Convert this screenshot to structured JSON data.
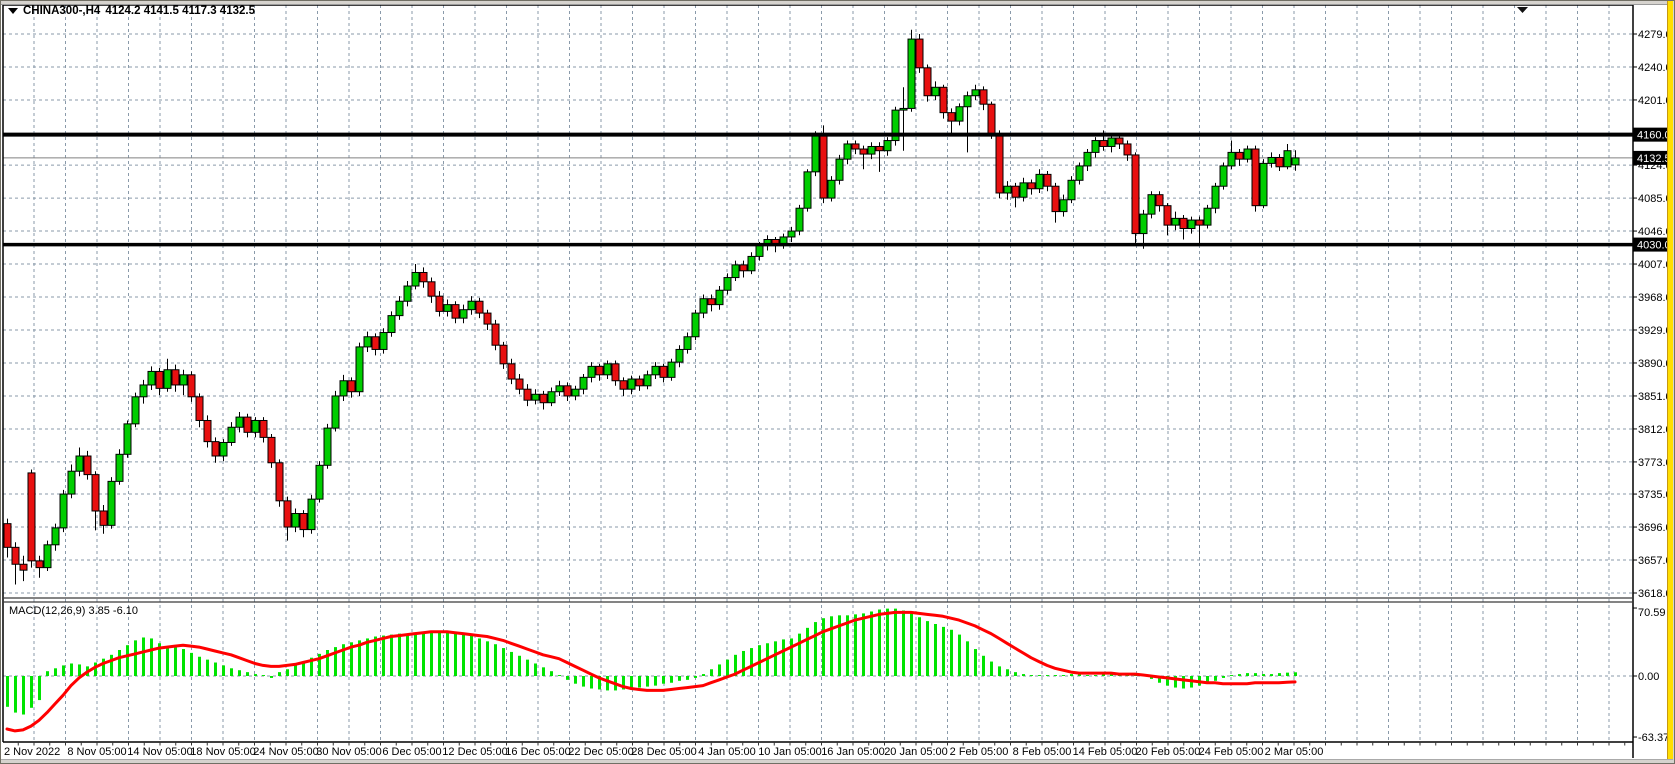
{
  "titlebar": {
    "symbol_tf": "CHINA300-,H4",
    "ohlc_text": "4124.2 4141.5 4117.3 4132.5"
  },
  "colors": {
    "bull": "#00cd00",
    "bear": "#e81010",
    "candle_outline": "#000000",
    "macd_hist": "#00e400",
    "macd_signal": "#ff0000",
    "grid": "#8a9aaa",
    "hline": "#000000",
    "current_price_line": "#808080",
    "axis_text": "#000000",
    "label_box_bg": "#000000",
    "label_box_text": "#ffffff",
    "chrome": "#d6d3ce",
    "accent_stripe": "#ffde00"
  },
  "chart_data": {
    "type": "candlestick",
    "title": "CHINA300-,H4",
    "symbol": "CHINA300-",
    "timeframe": "H4",
    "last_bar": {
      "open": 4124.2,
      "high": 4141.5,
      "low": 4117.3,
      "close": 4132.5
    },
    "price_axis": {
      "labels": [
        4279.0,
        4240.0,
        4201.0,
        4124.0,
        4085.0,
        4046.0,
        4007.0,
        3968.0,
        3929.0,
        3890.0,
        3851.0,
        3812.0,
        3773.0,
        3735.0,
        3696.0,
        3657.0,
        3618.0
      ]
    },
    "horizontal_lines": [
      {
        "price": 4160.0,
        "label": "4160.0",
        "thickness": 4
      },
      {
        "price": 4030.0,
        "label": "4030.0",
        "thickness": 3.5
      }
    ],
    "current_price": {
      "value": 4132.5,
      "label": "4132.5"
    },
    "time_axis": {
      "labels": [
        "2 Nov 2022",
        "8 Nov 05:00",
        "14 Nov 05:00",
        "18 Nov 05:00",
        "24 Nov 05:00",
        "30 Nov 05:00",
        "6 Dec 05:00",
        "12 Dec 05:00",
        "16 Dec 05:00",
        "22 Dec 05:00",
        "28 Dec 05:00",
        "4 Jan 05:00",
        "10 Jan 05:00",
        "16 Jan 05:00",
        "20 Jan 05:00",
        "2 Feb 05:00",
        "8 Feb 05:00",
        "14 Feb 05:00",
        "20 Feb 05:00",
        "24 Feb 05:00",
        "2 Mar 05:00"
      ]
    },
    "candles": [
      [
        3700,
        3706,
        3660,
        3672
      ],
      [
        3672,
        3678,
        3628,
        3652
      ],
      [
        3652,
        3662,
        3632,
        3645
      ],
      [
        3760,
        3764,
        3648,
        3656
      ],
      [
        3656,
        3662,
        3636,
        3648
      ],
      [
        3648,
        3680,
        3644,
        3675
      ],
      [
        3675,
        3700,
        3668,
        3695
      ],
      [
        3695,
        3740,
        3690,
        3735
      ],
      [
        3735,
        3770,
        3730,
        3762
      ],
      [
        3762,
        3790,
        3756,
        3780
      ],
      [
        3780,
        3786,
        3752,
        3758
      ],
      [
        3758,
        3762,
        3692,
        3715
      ],
      [
        3715,
        3722,
        3688,
        3698
      ],
      [
        3698,
        3755,
        3694,
        3750
      ],
      [
        3750,
        3788,
        3746,
        3782
      ],
      [
        3782,
        3822,
        3778,
        3818
      ],
      [
        3818,
        3855,
        3814,
        3850
      ],
      [
        3850,
        3870,
        3842,
        3864
      ],
      [
        3864,
        3886,
        3858,
        3880
      ],
      [
        3880,
        3884,
        3852,
        3860
      ],
      [
        3860,
        3895,
        3856,
        3882
      ],
      [
        3882,
        3888,
        3856,
        3864
      ],
      [
        3864,
        3882,
        3852,
        3876
      ],
      [
        3876,
        3880,
        3844,
        3850
      ],
      [
        3850,
        3854,
        3814,
        3822
      ],
      [
        3822,
        3828,
        3790,
        3797
      ],
      [
        3797,
        3802,
        3772,
        3780
      ],
      [
        3780,
        3800,
        3774,
        3796
      ],
      [
        3796,
        3820,
        3792,
        3814
      ],
      [
        3814,
        3832,
        3808,
        3826
      ],
      [
        3826,
        3830,
        3802,
        3808
      ],
      [
        3808,
        3826,
        3802,
        3822
      ],
      [
        3822,
        3826,
        3796,
        3802
      ],
      [
        3802,
        3806,
        3766,
        3772
      ],
      [
        3772,
        3776,
        3720,
        3727
      ],
      [
        3727,
        3732,
        3680,
        3696
      ],
      [
        3696,
        3718,
        3690,
        3712
      ],
      [
        3712,
        3716,
        3684,
        3693
      ],
      [
        3693,
        3734,
        3688,
        3729
      ],
      [
        3729,
        3774,
        3725,
        3769
      ],
      [
        3769,
        3818,
        3765,
        3813
      ],
      [
        3813,
        3857,
        3809,
        3851
      ],
      [
        3851,
        3876,
        3845,
        3869
      ],
      [
        3869,
        3873,
        3849,
        3856
      ],
      [
        3856,
        3914,
        3851,
        3909
      ],
      [
        3909,
        3927,
        3903,
        3921
      ],
      [
        3921,
        3925,
        3899,
        3906
      ],
      [
        3906,
        3931,
        3901,
        3926
      ],
      [
        3926,
        3951,
        3921,
        3946
      ],
      [
        3946,
        3969,
        3941,
        3963
      ],
      [
        3963,
        3987,
        3957,
        3981
      ],
      [
        3981,
        4007,
        3977,
        3997
      ],
      [
        3997,
        4003,
        3979,
        3986
      ],
      [
        3986,
        3991,
        3961,
        3969
      ],
      [
        3969,
        3975,
        3945,
        3951
      ],
      [
        3951,
        3965,
        3945,
        3959
      ],
      [
        3959,
        3963,
        3937,
        3943
      ],
      [
        3943,
        3959,
        3937,
        3953
      ],
      [
        3953,
        3969,
        3947,
        3963
      ],
      [
        3963,
        3967,
        3943,
        3949
      ],
      [
        3949,
        3953,
        3929,
        3936
      ],
      [
        3936,
        3941,
        3905,
        3911
      ],
      [
        3911,
        3915,
        3883,
        3889
      ],
      [
        3889,
        3895,
        3865,
        3871
      ],
      [
        3871,
        3877,
        3853,
        3859
      ],
      [
        3859,
        3865,
        3839,
        3846
      ],
      [
        3846,
        3859,
        3841,
        3853
      ],
      [
        3853,
        3857,
        3835,
        3843
      ],
      [
        3843,
        3861,
        3839,
        3856
      ],
      [
        3856,
        3869,
        3851,
        3863
      ],
      [
        3863,
        3867,
        3845,
        3851
      ],
      [
        3851,
        3863,
        3846,
        3859
      ],
      [
        3859,
        3877,
        3853,
        3873
      ],
      [
        3873,
        3891,
        3867,
        3886
      ],
      [
        3886,
        3889,
        3869,
        3876
      ],
      [
        3876,
        3893,
        3871,
        3889
      ],
      [
        3889,
        3893,
        3863,
        3869
      ],
      [
        3869,
        3873,
        3851,
        3859
      ],
      [
        3859,
        3875,
        3853,
        3871
      ],
      [
        3871,
        3875,
        3857,
        3863
      ],
      [
        3863,
        3881,
        3859,
        3876
      ],
      [
        3876,
        3891,
        3871,
        3886
      ],
      [
        3886,
        3889,
        3867,
        3873
      ],
      [
        3873,
        3895,
        3869,
        3891
      ],
      [
        3891,
        3911,
        3885,
        3906
      ],
      [
        3906,
        3926,
        3901,
        3921
      ],
      [
        3921,
        3953,
        3917,
        3949
      ],
      [
        3949,
        3971,
        3943,
        3966
      ],
      [
        3966,
        3971,
        3951,
        3959
      ],
      [
        3959,
        3981,
        3953,
        3976
      ],
      [
        3976,
        3996,
        3971,
        3991
      ],
      [
        3991,
        4011,
        3987,
        4006
      ],
      [
        4006,
        4011,
        3991,
        3999
      ],
      [
        3999,
        4021,
        3995,
        4016
      ],
      [
        4016,
        4033,
        4011,
        4029
      ],
      [
        4029,
        4041,
        4023,
        4036
      ],
      [
        4036,
        4039,
        4021,
        4029
      ],
      [
        4029,
        4043,
        4025,
        4039
      ],
      [
        4039,
        4051,
        4033,
        4046
      ],
      [
        4046,
        4077,
        4041,
        4073
      ],
      [
        4073,
        4119,
        4069,
        4116
      ],
      [
        4116,
        4164,
        4111,
        4159
      ],
      [
        4159,
        4171,
        4079,
        4085
      ],
      [
        4085,
        4111,
        4081,
        4106
      ],
      [
        4106,
        4136,
        4101,
        4131
      ],
      [
        4131,
        4153,
        4125,
        4149
      ],
      [
        4149,
        4153,
        4137,
        4143
      ],
      [
        4143,
        4147,
        4119,
        4137
      ],
      [
        4137,
        4151,
        4131,
        4146
      ],
      [
        4146,
        4151,
        4116,
        4141
      ],
      [
        4141,
        4157,
        4135,
        4153
      ],
      [
        4153,
        4193,
        4147,
        4189
      ],
      [
        4189,
        4216,
        4141,
        4191
      ],
      [
        4191,
        4284,
        4187,
        4273
      ],
      [
        4273,
        4279,
        4233,
        4239
      ],
      [
        4239,
        4243,
        4199,
        4206
      ],
      [
        4206,
        4223,
        4201,
        4216
      ],
      [
        4216,
        4219,
        4179,
        4186
      ],
      [
        4186,
        4191,
        4159,
        4176
      ],
      [
        4176,
        4197,
        4171,
        4193
      ],
      [
        4193,
        4211,
        4139,
        4206
      ],
      [
        4206,
        4219,
        4201,
        4213
      ],
      [
        4213,
        4217,
        4189,
        4196
      ],
      [
        4196,
        4199,
        4155,
        4161
      ],
      [
        4161,
        4165,
        4085,
        4091
      ],
      [
        4091,
        4105,
        4083,
        4099
      ],
      [
        4099,
        4103,
        4074,
        4086
      ],
      [
        4086,
        4109,
        4081,
        4103
      ],
      [
        4103,
        4107,
        4089,
        4096
      ],
      [
        4096,
        4119,
        4091,
        4113
      ],
      [
        4113,
        4117,
        4093,
        4099
      ],
      [
        4099,
        4103,
        4056,
        4069
      ],
      [
        4069,
        4089,
        4063,
        4083
      ],
      [
        4083,
        4111,
        4079,
        4106
      ],
      [
        4106,
        4127,
        4101,
        4123
      ],
      [
        4123,
        4143,
        4117,
        4139
      ],
      [
        4139,
        4157,
        4133,
        4153
      ],
      [
        4153,
        4165,
        4141,
        4146
      ],
      [
        4146,
        4161,
        4139,
        4156
      ],
      [
        4156,
        4159,
        4143,
        4149
      ],
      [
        4149,
        4153,
        4129,
        4136
      ],
      [
        4136,
        4139,
        4029,
        4043
      ],
      [
        4043,
        4071,
        4025,
        4066
      ],
      [
        4066,
        4093,
        4061,
        4089
      ],
      [
        4089,
        4093,
        4069,
        4076
      ],
      [
        4076,
        4079,
        4041,
        4053
      ],
      [
        4053,
        4069,
        4047,
        4061
      ],
      [
        4061,
        4065,
        4036,
        4049
      ],
      [
        4049,
        4063,
        4043,
        4059
      ],
      [
        4059,
        4063,
        4031,
        4053
      ],
      [
        4053,
        4077,
        4049,
        4073
      ],
      [
        4073,
        4103,
        4067,
        4099
      ],
      [
        4099,
        4127,
        4095,
        4123
      ],
      [
        4123,
        4153,
        4119,
        4139
      ],
      [
        4139,
        4143,
        4123,
        4131
      ],
      [
        4131,
        4147,
        4127,
        4143
      ],
      [
        4143,
        4147,
        4069,
        4076
      ],
      [
        4076,
        4131,
        4073,
        4126
      ],
      [
        4126,
        4139,
        4121,
        4133
      ],
      [
        4133,
        4137,
        4117,
        4122
      ],
      [
        4122,
        4149,
        4119,
        4141
      ],
      [
        4124.2,
        4141.5,
        4117.3,
        4132.5
      ]
    ],
    "macd": {
      "label": "MACD(12,26,9) 3.85 -6.10",
      "main_value": 3.85,
      "signal_value": -6.1,
      "axis_labels": [
        "70.59",
        "0.00",
        "-63.37"
      ],
      "upper": 70.59,
      "lower": -63.37,
      "histogram": [
        -32,
        -38,
        -40,
        -33,
        -25,
        5,
        8,
        11,
        13,
        12,
        10,
        14,
        18,
        22,
        27,
        32,
        37,
        40,
        39,
        34,
        30,
        31,
        28,
        24,
        20,
        17,
        14,
        11,
        8,
        6,
        4,
        2,
        1,
        -2,
        4,
        7,
        11,
        15,
        19,
        23,
        27,
        30,
        33,
        35,
        37,
        39,
        41,
        42,
        43,
        44,
        44,
        45,
        46,
        46,
        46,
        45,
        45,
        44,
        42,
        39,
        36,
        33,
        29,
        25,
        21,
        17,
        13,
        9,
        5,
        1,
        -4,
        -8,
        -11,
        -13,
        -14,
        -15,
        -15,
        -14,
        -13,
        -12,
        -11,
        -10,
        -8,
        -7,
        -5,
        -4,
        -2,
        2,
        7,
        12,
        17,
        22,
        26,
        29,
        32,
        34,
        36,
        38,
        39,
        44,
        50,
        56,
        60,
        62,
        63,
        63,
        64,
        65,
        67,
        69,
        70,
        70,
        68,
        65,
        61,
        57,
        54,
        51,
        48,
        43,
        36,
        28,
        21,
        15,
        10,
        7,
        4,
        2,
        1,
        1,
        1,
        1,
        1,
        2,
        2,
        1,
        1,
        2,
        3,
        3,
        3,
        2,
        1,
        -3,
        -7,
        -10,
        -12,
        -13,
        -12,
        -10,
        -8,
        -5,
        -2,
        1,
        2,
        3,
        3,
        2,
        2,
        3,
        3.5,
        3.85
      ],
      "signal": [
        -55,
        -57,
        -56,
        -52,
        -46,
        -38,
        -29,
        -20,
        -10,
        -2,
        4,
        9,
        13,
        16,
        19,
        21,
        23,
        25,
        27,
        29,
        30,
        31,
        32,
        31,
        30,
        28,
        26,
        24,
        22,
        19,
        16,
        13,
        11,
        10,
        10,
        11,
        12,
        14,
        16,
        18,
        21,
        24,
        27,
        30,
        32,
        35,
        37,
        39,
        41,
        42,
        43,
        44,
        45,
        46,
        46,
        46,
        45,
        44,
        43,
        42,
        41,
        39,
        37,
        34,
        31,
        28,
        25,
        22,
        20,
        18,
        14,
        10,
        6,
        2,
        -2,
        -5,
        -8,
        -11,
        -13,
        -14,
        -15,
        -15,
        -15,
        -14,
        -13,
        -12,
        -11,
        -10,
        -7,
        -4,
        -1,
        2,
        6,
        10,
        14,
        18,
        22,
        26,
        30,
        34,
        38,
        42,
        46,
        49,
        52,
        55,
        58,
        60,
        62,
        64,
        65,
        66,
        66,
        66,
        65,
        64,
        63,
        62,
        60,
        58,
        55,
        52,
        48,
        44,
        39,
        34,
        29,
        24,
        19,
        15,
        11,
        8,
        6,
        4,
        3,
        3,
        3,
        3,
        3,
        2,
        2,
        2,
        1,
        0,
        -1,
        -2,
        -3,
        -4,
        -5,
        -6,
        -7,
        -7,
        -8,
        -8,
        -8,
        -8,
        -7,
        -7,
        -7,
        -7,
        -6.5,
        -6.1
      ]
    }
  }
}
